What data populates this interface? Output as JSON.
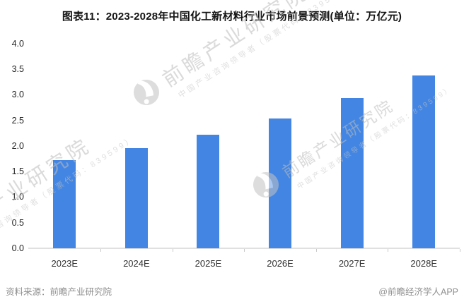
{
  "title": "图表11：2023-2028年中国化工新材料行业市场前景预测(单位：万亿元)",
  "chart_data": {
    "type": "bar",
    "categories": [
      "2023E",
      "2024E",
      "2025E",
      "2026E",
      "2027E",
      "2028E"
    ],
    "values": [
      1.72,
      1.96,
      2.22,
      2.54,
      2.94,
      3.37
    ],
    "title": "图表11：2023-2028年中国化工新材料行业市场前景预测",
    "unit": "万亿元",
    "xlabel": "",
    "ylabel": "",
    "ylim": [
      0.0,
      4.0
    ],
    "ytick_step": 0.5,
    "yticks": [
      "4.0",
      "3.5",
      "3.0",
      "2.5",
      "2.0",
      "1.5",
      "1.0",
      "0.5",
      "0.0"
    ],
    "grid": false,
    "legend": false,
    "bar_color": "#4285e2",
    "axis_color": "#e0e0e0",
    "label_color": "#262626"
  },
  "watermark": {
    "logo_icon": "qianzhan-logo-icon",
    "brand": "前瞻产业研究院",
    "tagline": "中国产业咨询领导者（股票代码：839599）"
  },
  "footer": {
    "source": "资料来源：前瞻产业研究院",
    "credit": "@前瞻经济学人APP"
  }
}
